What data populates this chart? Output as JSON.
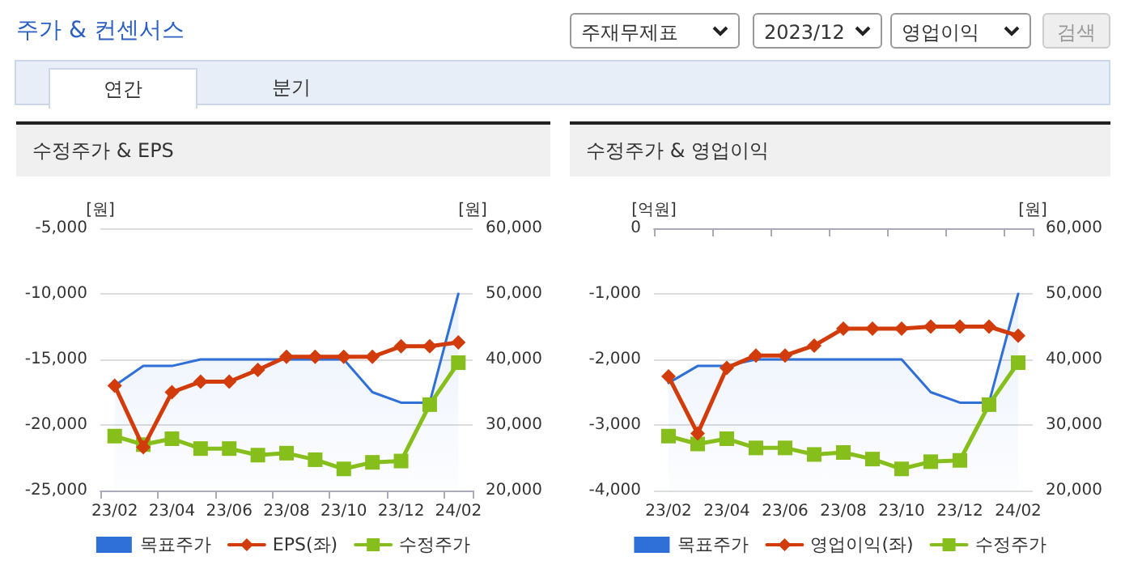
{
  "chart_data": [
    {
      "type": "other",
      "title": "주가 & 컨센서스",
      "annotations": [
        "주재무제표",
        "2023/12",
        "영업이익",
        "검색",
        "연간",
        "분기"
      ]
    },
    {
      "type": "line",
      "title": "수정주가 & EPS",
      "ylabel": "[원]",
      "y2label": "[원]",
      "categories": [
        "23/02",
        null,
        "23/04",
        null,
        "23/06",
        null,
        "23/08",
        null,
        "23/10",
        null,
        "23/12",
        null,
        "24/02"
      ],
      "series": [
        {
          "name": "목표주가",
          "type": "area",
          "axis": "y2",
          "color": "#2f6fd8",
          "marker": "none",
          "values": [
            36000,
            39000,
            39000,
            40000,
            40000,
            40000,
            40000,
            40000,
            40000,
            35000,
            33400,
            33400,
            50000
          ]
        },
        {
          "name": "EPS(좌)",
          "axis": "y",
          "color": "#d23c0a",
          "marker": "diamond",
          "values": [
            -17000,
            -21700,
            -17500,
            -16700,
            -16700,
            -15800,
            -14800,
            -14800,
            -14800,
            -14800,
            -14000,
            -14000,
            -13700
          ]
        },
        {
          "name": "수정주가",
          "axis": "y2",
          "color": "#86bf1b",
          "marker": "square",
          "values": [
            28300,
            27000,
            27900,
            26400,
            26400,
            25400,
            25700,
            24700,
            23300,
            24300,
            24500,
            33100,
            39500
          ]
        }
      ],
      "ylim": [
        -25000,
        -5000
      ],
      "yticks": [
        {
          "value": -25000,
          "label": "-25,000"
        },
        {
          "value": -20000,
          "label": "-20,000"
        },
        {
          "value": -15000,
          "label": "-15,000"
        },
        {
          "value": -10000,
          "label": "-10,000"
        },
        {
          "value": -5000,
          "label": "-5,000"
        }
      ],
      "y2lim": [
        20000,
        60000
      ],
      "y2ticks": [
        {
          "value": 20000,
          "label": "20,000"
        },
        {
          "value": 30000,
          "label": "30,000"
        },
        {
          "value": 40000,
          "label": "40,000"
        },
        {
          "value": 50000,
          "label": "50,000"
        },
        {
          "value": 60000,
          "label": "60,000"
        }
      ],
      "grid": "y",
      "legend": "bottom",
      "line_style": "solid"
    },
    {
      "type": "line",
      "title": "수정주가 & 영업이익",
      "ylabel": "[억원]",
      "y2label": "[원]",
      "categories": [
        "23/02",
        null,
        "23/04",
        null,
        "23/06",
        null,
        "23/08",
        null,
        "23/10",
        null,
        "23/12",
        null,
        "24/02"
      ],
      "series": [
        {
          "name": "목표주가",
          "type": "area",
          "axis": "y2",
          "color": "#2f6fd8",
          "marker": "none",
          "values": [
            36400,
            39000,
            39000,
            40000,
            40000,
            40000,
            40000,
            40000,
            40000,
            35000,
            33400,
            33400,
            50000
          ]
        },
        {
          "name": "영업이익(좌)",
          "axis": "y",
          "color": "#d23c0a",
          "marker": "diamond",
          "values": [
            -2260,
            -3130,
            -2130,
            -1940,
            -1940,
            -1790,
            -1530,
            -1530,
            -1530,
            -1500,
            -1500,
            -1500,
            -1640
          ]
        },
        {
          "name": "수정주가",
          "axis": "y2",
          "color": "#86bf1b",
          "marker": "square",
          "values": [
            28300,
            27100,
            27900,
            26500,
            26500,
            25500,
            25800,
            24800,
            23300,
            24400,
            24600,
            33100,
            39500
          ]
        }
      ],
      "ylim": [
        -4000,
        0
      ],
      "yticks": [
        {
          "value": -4000,
          "label": "-4,000"
        },
        {
          "value": -3000,
          "label": "-3,000"
        },
        {
          "value": -2000,
          "label": "-2,000"
        },
        {
          "value": -1000,
          "label": "-1,000"
        },
        0
      ],
      "y2lim": [
        20000,
        60000
      ],
      "y2ticks": [
        {
          "value": 20000,
          "label": "20,000"
        },
        {
          "value": 30000,
          "label": "30,000"
        },
        {
          "value": 40000,
          "label": "40,000"
        },
        {
          "value": 50000,
          "label": "50,000"
        },
        {
          "value": 60000,
          "label": "60,000"
        }
      ],
      "grid": "y",
      "legend": "bottom",
      "line_style": "solid"
    }
  ]
}
